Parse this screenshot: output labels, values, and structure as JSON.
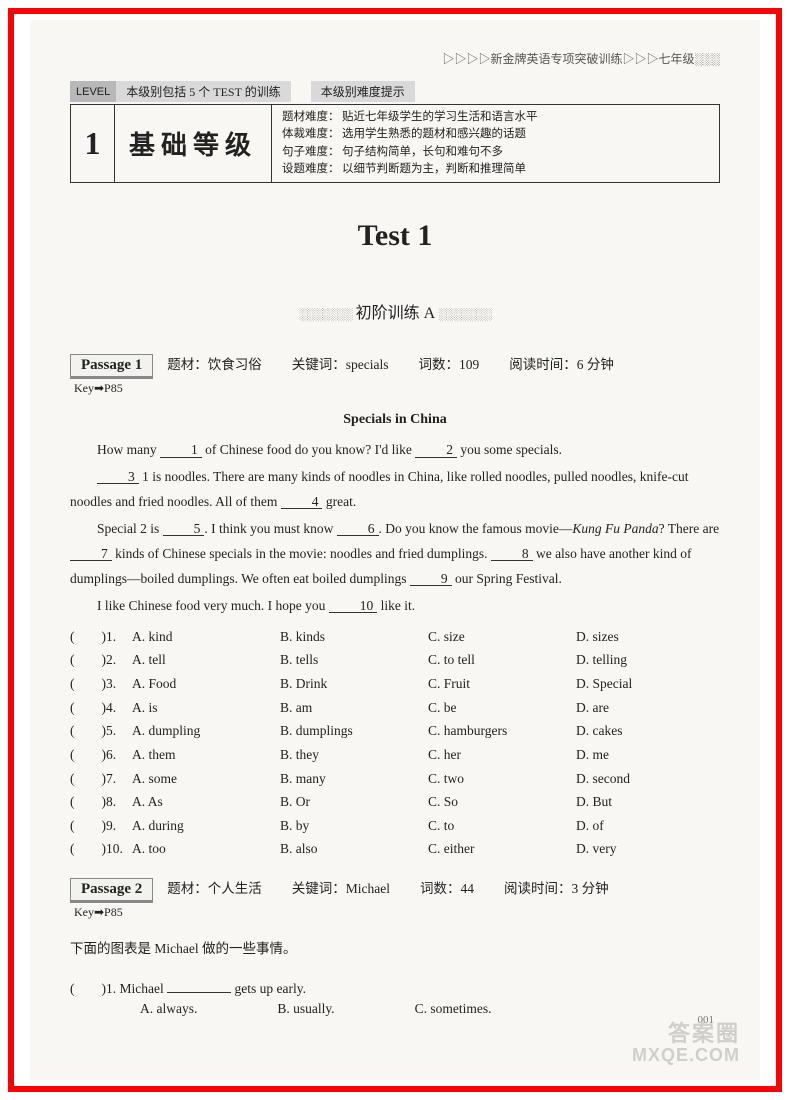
{
  "header": "▷▷▷▷新金牌英语专项突破训练▷▷▷七年级░░░",
  "level": {
    "tag": "LEVEL",
    "desc": "本级别包括 5 个 TEST 的训练",
    "hint": "本级别难度提示",
    "num": "1",
    "title": "基础等级",
    "rows": [
      {
        "label": "题材难度：",
        "text": "贴近七年级学生的学习生活和语言水平"
      },
      {
        "label": "体裁难度：",
        "text": "选用学生熟悉的题材和感兴趣的话题"
      },
      {
        "label": "句子难度：",
        "text": "句子结构简单，长句和难句不多"
      },
      {
        "label": "设题难度：",
        "text": "以细节判断题为主，判断和推理简单"
      }
    ]
  },
  "test_title": "Test 1",
  "sub_dots_l": "░░░░░░░",
  "sub_title": " 初阶训练 A ",
  "sub_dots_r": "░░░░░░░",
  "passage1": {
    "tag": "Passage 1",
    "meta": {
      "topic_label": "题材：",
      "topic": "饮食习俗",
      "kw_label": "关键词：",
      "kw": "specials",
      "wc_label": "词数：",
      "wc": "109",
      "time_label": "阅读时间：",
      "time": "6 分钟"
    },
    "key": "Key➡P85",
    "article_title": "Specials in China",
    "paras": [
      {
        "pre": "How many ",
        "b": "1",
        "post": " of Chinese food do you know?  I'd like ",
        "b2": "2",
        "post2": " you some specials."
      },
      {
        "pre": "",
        "b": "3",
        "post": " 1 is noodles.  There are many kinds of noodles in China, like rolled noodles, pulled noodles, knife-cut noodles and fried noodles.  All of them ",
        "b2": "4",
        "post2": " great."
      }
    ],
    "para3_a": "Special 2 is ",
    "para3_b": ".  I think you must know ",
    "para3_c": ".  Do you know the famous movie—",
    "para3_it": "Kung Fu Panda",
    "para3_d": "?  There are ",
    "para3_e": " kinds of Chinese specials in the movie: noodles and fried dumplings. ",
    "para3_f": " we also have another kind of dumplings—boiled dumplings.  We often eat boiled dumplings ",
    "para3_g": " our Spring Festival.",
    "para4_a": "I like Chinese food very much.  I hope you ",
    "para4_b": " like it.",
    "blanks": {
      "n5": "5",
      "n6": "6",
      "n7": "7",
      "n8": "8",
      "n9": "9",
      "n10": "10"
    },
    "options": [
      {
        "n": "1",
        "a": "kind",
        "b": "kinds",
        "c": "size",
        "d": "sizes"
      },
      {
        "n": "2",
        "a": "tell",
        "b": "tells",
        "c": "to tell",
        "d": "telling"
      },
      {
        "n": "3",
        "a": "Food",
        "b": "Drink",
        "c": "Fruit",
        "d": "Special"
      },
      {
        "n": "4",
        "a": "is",
        "b": "am",
        "c": "be",
        "d": "are"
      },
      {
        "n": "5",
        "a": "dumpling",
        "b": "dumplings",
        "c": "hamburgers",
        "d": "cakes"
      },
      {
        "n": "6",
        "a": "them",
        "b": "they",
        "c": "her",
        "d": "me"
      },
      {
        "n": "7",
        "a": "some",
        "b": "many",
        "c": "two",
        "d": "second"
      },
      {
        "n": "8",
        "a": "As",
        "b": "Or",
        "c": "So",
        "d": "But"
      },
      {
        "n": "9",
        "a": "during",
        "b": "by",
        "c": "to",
        "d": "of"
      },
      {
        "n": "10",
        "a": "too",
        "b": "also",
        "c": "either",
        "d": "very"
      }
    ]
  },
  "passage2": {
    "tag": "Passage 2",
    "meta": {
      "topic_label": "题材：",
      "topic": "个人生活",
      "kw_label": "关键词：",
      "kw": "Michael",
      "wc_label": "词数：",
      "wc": "44",
      "time_label": "阅读时间：",
      "time": "3 分钟"
    },
    "key": "Key➡P85",
    "intro": "下面的图表是 Michael 做的一些事情。",
    "q1_pre": "(　　)1. Michael ",
    "q1_post": " gets up early.",
    "opts": {
      "a": "A. always.",
      "b": "B. usually.",
      "c": "C. sometimes."
    }
  },
  "page_num": "001",
  "watermark": {
    "top": "答案圈",
    "bot": "MXQE.COM"
  }
}
